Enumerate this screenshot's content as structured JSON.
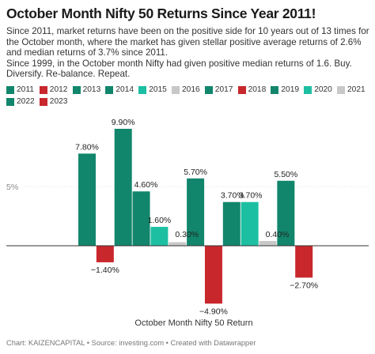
{
  "title": "October Month Nifty 50 Returns Since Year 2011!",
  "description": {
    "line1": "Since 2011, market returns have been on the positive side for 10 years out of 13 times for the October month, where the market has given stellar positive average returns of 2.6% and median returns of 3.7% since 2011.",
    "line2": "Since 1999, in the October month Nifty had given positive median returns of 1.6. Buy. Diversify. Re-balance. Repeat."
  },
  "footer": "Chart: KAIZENCAPITAL • Source: investing.com • Created with Datawrapper",
  "chart_data": {
    "type": "bar",
    "title": "October Month Nifty 50 Returns Since Year 2011!",
    "xlabel": "October Month Nifty 50 Return",
    "ylabel": "",
    "ylim": [
      -6,
      10.5
    ],
    "yticks": [
      {
        "value": 5,
        "label": "5%"
      }
    ],
    "grid": true,
    "legend_position": "top",
    "categories": [
      "2011",
      "2012",
      "2013",
      "2014",
      "2015",
      "2016",
      "2017",
      "2018",
      "2019",
      "2020",
      "2021",
      "2022",
      "2023"
    ],
    "values": [
      7.8,
      -1.4,
      9.9,
      4.6,
      1.6,
      0.3,
      5.7,
      -4.9,
      3.7,
      3.7,
      0.4,
      5.5,
      -2.7
    ],
    "value_labels": [
      "7.80%",
      "−1.40%",
      "9.90%",
      "4.60%",
      "1.60%",
      "0.30%",
      "5.70%",
      "−4.90%",
      "3.70%",
      "3.70%",
      "0.40%",
      "5.50%",
      "−2.70%"
    ],
    "colors": [
      "#12866c",
      "#c8282c",
      "#12866c",
      "#12866c",
      "#1dbfa2",
      "#c8c8c8",
      "#12866c",
      "#c8282c",
      "#12866c",
      "#1dbfa2",
      "#c8c8c8",
      "#12866c",
      "#c8282c"
    ]
  }
}
